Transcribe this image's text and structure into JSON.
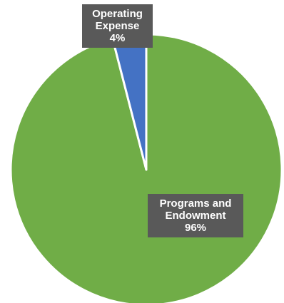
{
  "chart_data": {
    "type": "pie",
    "title": "",
    "slices": [
      {
        "label_lines": [
          "Programs and",
          "Endowment"
        ],
        "value_label": "96%",
        "value": 96,
        "color": "#70AD47"
      },
      {
        "label_lines": [
          "Operating",
          "Expense"
        ],
        "value_label": "4%",
        "value": 4,
        "color": "#4472C4"
      }
    ],
    "slice_border_color": "#ffffff",
    "label_box_color": "#595959",
    "label_text_color": "#ffffff",
    "legend": "none"
  }
}
